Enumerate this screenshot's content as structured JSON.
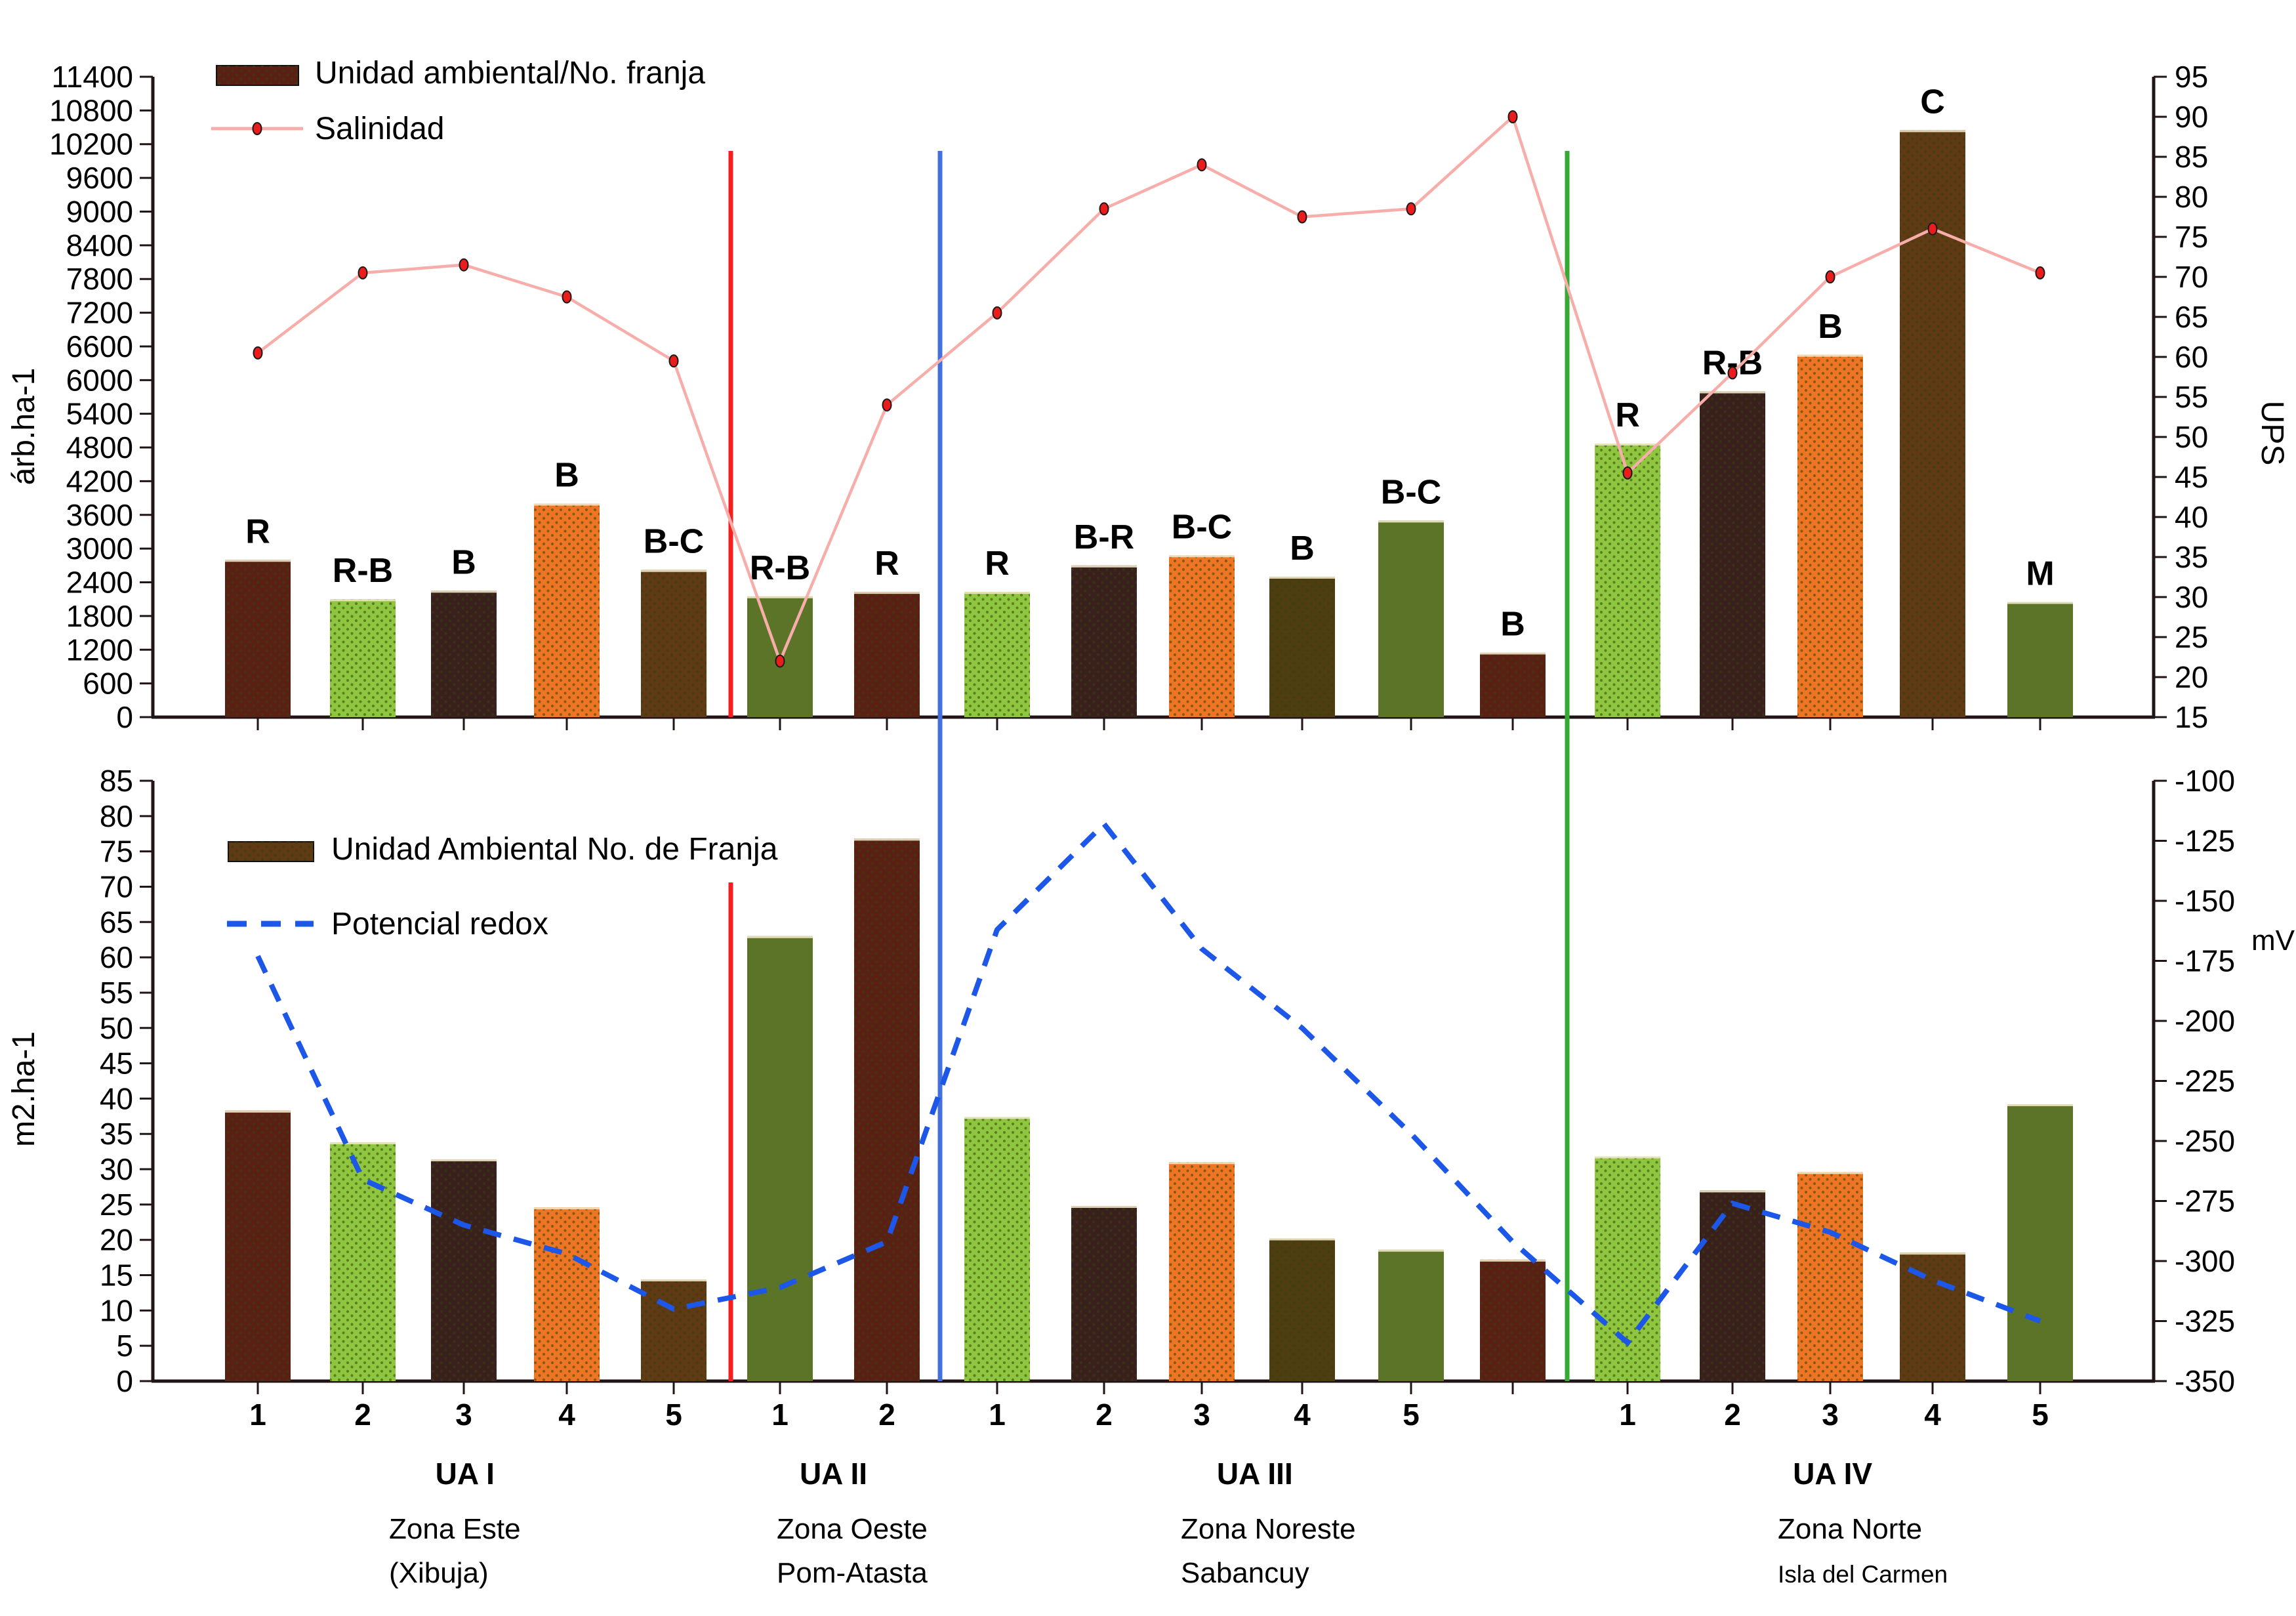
{
  "colors": {
    "maroon": "#5b2014",
    "light_green": "#8ec63f",
    "dark_brown": "#3a201c",
    "orange": "#ee7523",
    "brown": "#5f3a14",
    "olive_brown": "#4e3d10",
    "olive": "#5b7427",
    "salinity_line": "#f7aeaa",
    "salinity_marker": "#ea1c1c",
    "redox_line": "#1c57e8",
    "separator_red": "#f3201f",
    "separator_blue": "#4470dc",
    "separator_green": "#39a935",
    "axis": "#201416",
    "bar_top_edge": "#efe6c4"
  },
  "chart_data": [
    {
      "type": "bar",
      "panel": "top",
      "ylabel_left": "árb.ha-1",
      "ylabel_right": "UPS",
      "yaxis_left": {
        "min": 0,
        "max": 11400,
        "step": 600
      },
      "yaxis_right": {
        "min": 15,
        "max": 95,
        "step": 5
      },
      "legend": [
        {
          "label": "Unidad ambiental/No. franja",
          "type": "bar-swatch",
          "swatch_color": "maroon"
        },
        {
          "label": "Salinidad",
          "type": "line-marker-swatch"
        }
      ],
      "bars": [
        {
          "group": "UA I",
          "x": "1",
          "letter": "R",
          "color": "maroon",
          "value": 2800
        },
        {
          "group": "UA I",
          "x": "2",
          "letter": "R-B",
          "color": "light_green",
          "value": 2100
        },
        {
          "group": "UA I",
          "x": "3",
          "letter": "B",
          "color": "dark_brown",
          "value": 2250
        },
        {
          "group": "UA I",
          "x": "4",
          "letter": "B",
          "color": "orange",
          "value": 3800
        },
        {
          "group": "UA I",
          "x": "5",
          "letter": "B-C",
          "color": "brown",
          "value": 2620
        },
        {
          "group": "UA II",
          "x": "1",
          "letter": "R-B",
          "color": "olive",
          "value": 2150
        },
        {
          "group": "UA II",
          "x": "2",
          "letter": "R",
          "color": "maroon",
          "value": 2230
        },
        {
          "group": "UA III",
          "x": "1",
          "letter": "R",
          "color": "light_green",
          "value": 2230
        },
        {
          "group": "UA III",
          "x": "2",
          "letter": "B-R",
          "color": "dark_brown",
          "value": 2700
        },
        {
          "group": "UA III",
          "x": "3",
          "letter": "B-C",
          "color": "orange",
          "value": 2880
        },
        {
          "group": "UA III",
          "x": "4",
          "letter": "B",
          "color": "olive_brown",
          "value": 2500
        },
        {
          "group": "UA III",
          "x": "5",
          "letter": "B-C",
          "color": "olive",
          "value": 3500
        },
        {
          "group": "UA III",
          "x": "",
          "letter": "B",
          "color": "maroon",
          "value": 1150
        },
        {
          "group": "UA IV",
          "x": "1",
          "letter": "R",
          "color": "light_green",
          "value": 4870
        },
        {
          "group": "UA IV",
          "x": "2",
          "letter": "R-B",
          "color": "dark_brown",
          "value": 5800
        },
        {
          "group": "UA IV",
          "x": "3",
          "letter": "B",
          "color": "orange",
          "value": 6450
        },
        {
          "group": "UA IV",
          "x": "4",
          "letter": "C",
          "color": "brown",
          "value": 10450
        },
        {
          "group": "UA IV",
          "x": "5",
          "letter": "M",
          "color": "olive",
          "value": 2050
        }
      ],
      "line": {
        "name": "Salinidad",
        "axis": "right",
        "values": [
          60.5,
          70.5,
          71.5,
          67.5,
          59.5,
          22,
          54,
          65.5,
          78.5,
          84,
          77.5,
          78.5,
          90,
          45.5,
          58,
          70,
          76,
          70.5
        ]
      }
    },
    {
      "type": "bar",
      "panel": "bottom",
      "ylabel_left": "m2.ha-1",
      "ylabel_right": "mV",
      "yaxis_left": {
        "min": 0,
        "max": 85,
        "step": 5
      },
      "yaxis_right": {
        "min": -350,
        "max": -100,
        "step": 25
      },
      "legend": [
        {
          "label": "Unidad Ambiental No. de Franja",
          "type": "bar-swatch",
          "swatch_color": "brown"
        },
        {
          "label": "Potencial redox",
          "type": "dash-swatch"
        }
      ],
      "bars": [
        {
          "group": "UA I",
          "x": "1",
          "color": "maroon",
          "value": 38.3
        },
        {
          "group": "UA I",
          "x": "2",
          "color": "light_green",
          "value": 33.8
        },
        {
          "group": "UA I",
          "x": "3",
          "color": "dark_brown",
          "value": 31.4
        },
        {
          "group": "UA I",
          "x": "4",
          "color": "orange",
          "value": 24.6
        },
        {
          "group": "UA I",
          "x": "5",
          "color": "brown",
          "value": 14.4
        },
        {
          "group": "UA II",
          "x": "1",
          "color": "olive",
          "value": 63
        },
        {
          "group": "UA II",
          "x": "2",
          "color": "maroon",
          "value": 76.8
        },
        {
          "group": "UA III",
          "x": "1",
          "color": "light_green",
          "value": 37.4
        },
        {
          "group": "UA III",
          "x": "2",
          "color": "dark_brown",
          "value": 24.8
        },
        {
          "group": "UA III",
          "x": "3",
          "color": "orange",
          "value": 31
        },
        {
          "group": "UA III",
          "x": "4",
          "color": "olive_brown",
          "value": 20.2
        },
        {
          "group": "UA III",
          "x": "5",
          "color": "olive",
          "value": 18.6
        },
        {
          "group": "UA III",
          "x": "",
          "color": "maroon",
          "value": 17.2
        },
        {
          "group": "UA IV",
          "x": "1",
          "color": "light_green",
          "value": 31.8
        },
        {
          "group": "UA IV",
          "x": "2",
          "color": "dark_brown",
          "value": 27
        },
        {
          "group": "UA IV",
          "x": "3",
          "color": "orange",
          "value": 29.6
        },
        {
          "group": "UA IV",
          "x": "4",
          "color": "brown",
          "value": 18.2
        },
        {
          "group": "UA IV",
          "x": "5",
          "color": "olive",
          "value": 39.2
        }
      ],
      "line": {
        "name": "Potencial redox",
        "axis": "right",
        "values": [
          -173,
          -266,
          -285,
          -297,
          -320,
          -311,
          -292,
          -162,
          -118,
          -170,
          -203,
          -247,
          -292,
          -334,
          -276,
          -288,
          -308,
          -325
        ]
      }
    }
  ],
  "x_axis": {
    "groups": [
      {
        "name": "UA I",
        "ticks": [
          "1",
          "2",
          "3",
          "4",
          "5"
        ],
        "zone_lines": [
          "Zona Este",
          "(Xibuja)"
        ],
        "zone_small": false
      },
      {
        "name": "UA II",
        "ticks": [
          "1",
          "2"
        ],
        "zone_lines": [
          "Zona Oeste",
          "Pom-Atasta"
        ],
        "zone_small": false
      },
      {
        "name": "UA III",
        "ticks": [
          "1",
          "2",
          "3",
          "4",
          "5",
          ""
        ],
        "zone_lines": [
          "Zona Noreste",
          "Sabancuy"
        ],
        "zone_small": false
      },
      {
        "name": "UA IV",
        "ticks": [
          "1",
          "2",
          "3",
          "4",
          "5"
        ],
        "zone_lines": [
          "Zona Norte",
          "Isla del Carmen"
        ],
        "zone_small": true
      }
    ]
  },
  "separators": [
    {
      "name": "red-separator",
      "color": "separator_red"
    },
    {
      "name": "blue-separator",
      "color": "separator_blue"
    },
    {
      "name": "green-separator",
      "color": "separator_green"
    }
  ]
}
